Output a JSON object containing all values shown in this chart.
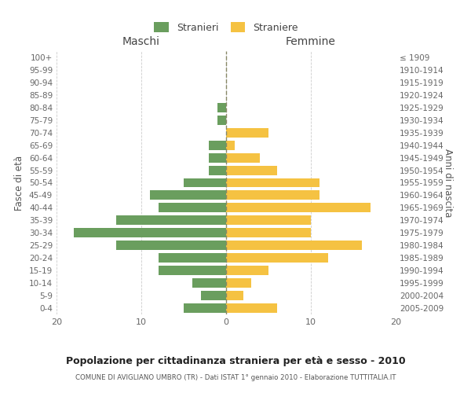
{
  "age_groups": [
    "0-4",
    "5-9",
    "10-14",
    "15-19",
    "20-24",
    "25-29",
    "30-34",
    "35-39",
    "40-44",
    "45-49",
    "50-54",
    "55-59",
    "60-64",
    "65-69",
    "70-74",
    "75-79",
    "80-84",
    "85-89",
    "90-94",
    "95-99",
    "100+"
  ],
  "birth_years": [
    "2005-2009",
    "2000-2004",
    "1995-1999",
    "1990-1994",
    "1985-1989",
    "1980-1984",
    "1975-1979",
    "1970-1974",
    "1965-1969",
    "1960-1964",
    "1955-1959",
    "1950-1954",
    "1945-1949",
    "1940-1944",
    "1935-1939",
    "1930-1934",
    "1925-1929",
    "1920-1924",
    "1915-1919",
    "1910-1914",
    "≤ 1909"
  ],
  "maschi": [
    5,
    3,
    4,
    8,
    8,
    13,
    18,
    13,
    8,
    9,
    5,
    2,
    2,
    2,
    0,
    1,
    1,
    0,
    0,
    0,
    0
  ],
  "femmine": [
    6,
    2,
    3,
    5,
    12,
    16,
    10,
    10,
    17,
    11,
    11,
    6,
    4,
    1,
    5,
    0,
    0,
    0,
    0,
    0,
    0
  ],
  "maschi_color": "#6a9e5e",
  "femmine_color": "#f5c242",
  "background_color": "#ffffff",
  "grid_color": "#cccccc",
  "title": "Popolazione per cittadinanza straniera per età e sesso - 2010",
  "subtitle": "COMUNE DI AVIGLIANO UMBRO (TR) - Dati ISTAT 1° gennaio 2010 - Elaborazione TUTTITALIA.IT",
  "xlabel_left": "Maschi",
  "xlabel_right": "Femmine",
  "ylabel_left": "Fasce di età",
  "ylabel_right": "Anni di nascita",
  "legend_stranieri": "Stranieri",
  "legend_straniere": "Straniere",
  "xlim": 20
}
